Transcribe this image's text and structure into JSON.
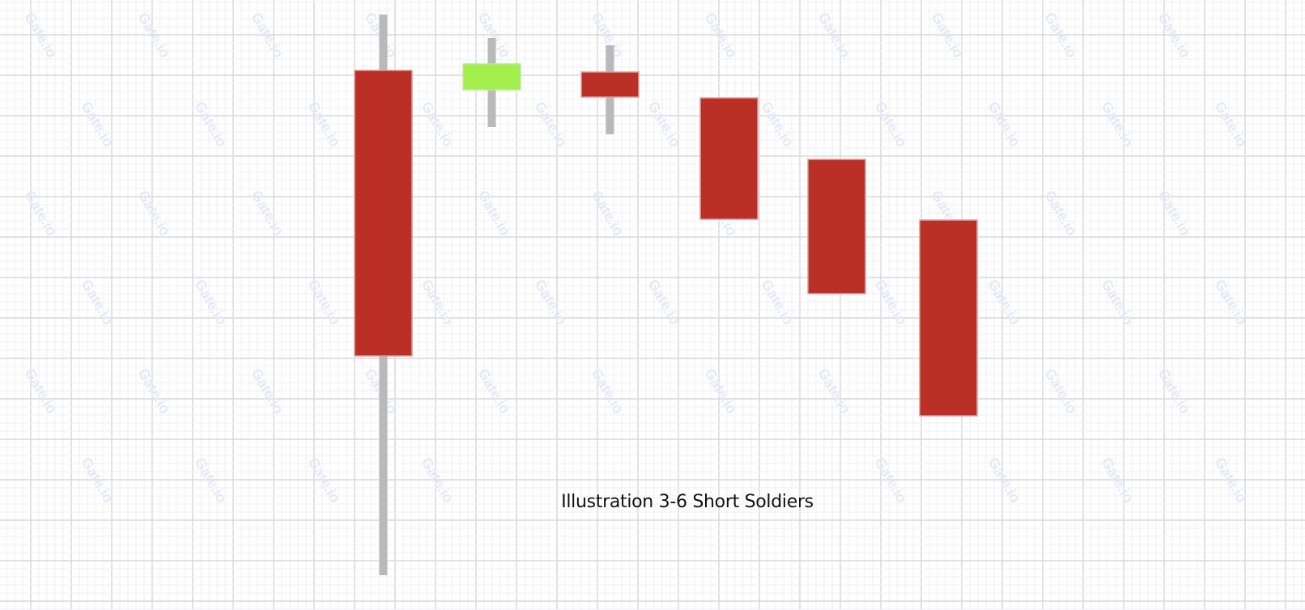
{
  "chart_data": {
    "type": "candlestick",
    "title": "Illustration 3-6  Short Soldiers",
    "grid": true,
    "watermark": "Gate.io",
    "colors": {
      "bearish": "#bb3026",
      "bullish": "#a3ef4b",
      "wick": "#b9b9b9",
      "grid_major": "#d9d9dd",
      "grid_minor": "#efeff3",
      "watermark": "#e6e8fa"
    },
    "candles": [
      {
        "open": 65.3,
        "high": 72.2,
        "low": 2.9,
        "close": 30.0
      },
      {
        "open": 62.9,
        "high": 69.3,
        "low": 58.3,
        "close": 66.1
      },
      {
        "open": 65.1,
        "high": 68.4,
        "low": 57.4,
        "close": 62.0
      },
      {
        "open": 61.9,
        "high": 61.9,
        "low": 46.9,
        "close": 46.9
      },
      {
        "open": 54.3,
        "high": 54.3,
        "low": 37.7,
        "close": 37.7
      },
      {
        "open": 46.8,
        "high": 46.8,
        "low": 22.6,
        "close": 22.6
      }
    ]
  }
}
